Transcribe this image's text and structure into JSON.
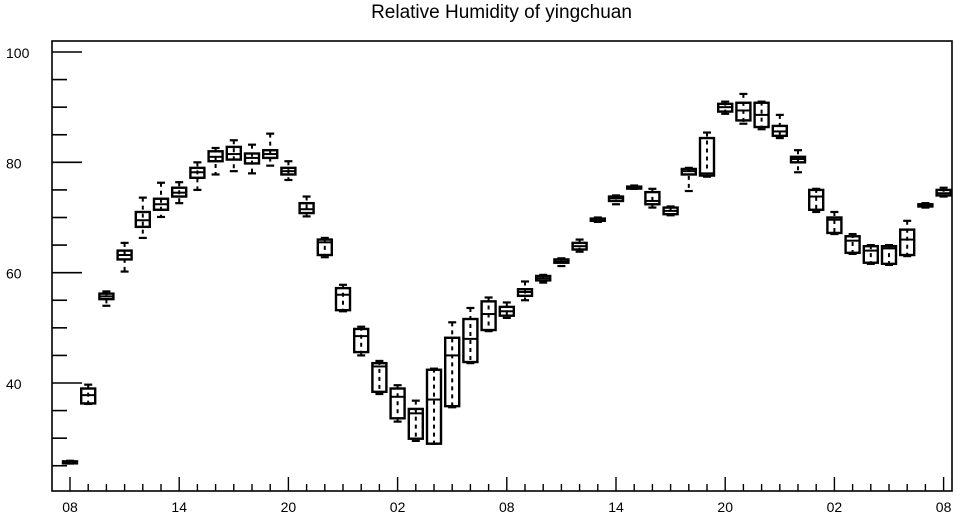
{
  "chart_data": {
    "type": "box",
    "title": "Relative Humidity of yingchuan",
    "xlabel": "",
    "ylabel": "",
    "ylim": [
      22,
      102
    ],
    "yticks": [
      40,
      60,
      80,
      100
    ],
    "x_tick_labels": [
      "08",
      "14",
      "20",
      "02",
      "08",
      "14",
      "20",
      "02",
      "08"
    ],
    "x_tick_hours": [
      0,
      6,
      12,
      18,
      24,
      30,
      36,
      42,
      48
    ],
    "grid": false,
    "boxes": [
      {
        "hour": 0,
        "min": 25.4,
        "q1": 25.5,
        "median": 25.6,
        "q3": 25.8,
        "max": 25.9
      },
      {
        "hour": 1,
        "min": 36.2,
        "q1": 36.3,
        "median": 37.8,
        "q3": 39.0,
        "max": 39.7
      },
      {
        "hour": 2,
        "min": 54.0,
        "q1": 55.2,
        "median": 55.7,
        "q3": 56.2,
        "max": 56.6
      },
      {
        "hour": 3,
        "min": 60.2,
        "q1": 62.4,
        "median": 63.2,
        "q3": 64.0,
        "max": 65.4
      },
      {
        "hour": 4,
        "min": 66.3,
        "q1": 68.3,
        "median": 69.5,
        "q3": 71.0,
        "max": 73.6
      },
      {
        "hour": 5,
        "min": 70.1,
        "q1": 71.4,
        "median": 72.4,
        "q3": 73.4,
        "max": 76.3
      },
      {
        "hour": 6,
        "min": 72.6,
        "q1": 73.8,
        "median": 74.5,
        "q3": 75.4,
        "max": 76.4
      },
      {
        "hour": 7,
        "min": 75.0,
        "q1": 77.2,
        "median": 78.2,
        "q3": 79.0,
        "max": 80.0
      },
      {
        "hour": 8,
        "min": 77.8,
        "q1": 80.2,
        "median": 81.0,
        "q3": 82.0,
        "max": 82.6
      },
      {
        "hour": 9,
        "min": 78.4,
        "q1": 80.5,
        "median": 81.5,
        "q3": 82.8,
        "max": 84.0
      },
      {
        "hour": 10,
        "min": 78.0,
        "q1": 79.8,
        "median": 80.8,
        "q3": 81.6,
        "max": 83.2
      },
      {
        "hour": 11,
        "min": 79.4,
        "q1": 80.8,
        "median": 81.5,
        "q3": 82.2,
        "max": 85.2
      },
      {
        "hour": 12,
        "min": 76.8,
        "q1": 77.8,
        "median": 78.4,
        "q3": 79.0,
        "max": 80.2
      },
      {
        "hour": 13,
        "min": 70.2,
        "q1": 70.8,
        "median": 71.5,
        "q3": 72.6,
        "max": 73.8
      },
      {
        "hour": 14,
        "min": 62.8,
        "q1": 63.2,
        "median": 65.5,
        "q3": 66.0,
        "max": 66.3
      },
      {
        "hour": 15,
        "min": 53.0,
        "q1": 53.2,
        "median": 56.0,
        "q3": 57.2,
        "max": 57.8
      },
      {
        "hour": 16,
        "min": 45.0,
        "q1": 45.6,
        "median": 48.5,
        "q3": 49.8,
        "max": 50.2
      },
      {
        "hour": 17,
        "min": 38.0,
        "q1": 38.4,
        "median": 43.0,
        "q3": 43.6,
        "max": 44.0
      },
      {
        "hour": 18,
        "min": 33.0,
        "q1": 33.6,
        "median": 37.5,
        "q3": 39.0,
        "max": 39.6
      },
      {
        "hour": 19,
        "min": 29.5,
        "q1": 29.9,
        "median": 34.5,
        "q3": 35.3,
        "max": 36.8
      },
      {
        "hour": 20,
        "min": 29.0,
        "q1": 29.0,
        "median": 37.0,
        "q3": 42.4,
        "max": 42.6
      },
      {
        "hour": 21,
        "min": 35.6,
        "q1": 35.8,
        "median": 45.0,
        "q3": 48.2,
        "max": 51.0
      },
      {
        "hour": 22,
        "min": 43.6,
        "q1": 43.8,
        "median": 48.0,
        "q3": 51.6,
        "max": 53.6
      },
      {
        "hour": 23,
        "min": 49.4,
        "q1": 49.6,
        "median": 52.5,
        "q3": 54.8,
        "max": 55.5
      },
      {
        "hour": 24,
        "min": 51.8,
        "q1": 52.2,
        "median": 53.0,
        "q3": 53.8,
        "max": 54.6
      },
      {
        "hour": 25,
        "min": 55.0,
        "q1": 55.8,
        "median": 56.5,
        "q3": 57.0,
        "max": 58.4
      },
      {
        "hour": 26,
        "min": 58.2,
        "q1": 58.6,
        "median": 59.0,
        "q3": 59.4,
        "max": 59.6
      },
      {
        "hour": 27,
        "min": 61.2,
        "q1": 61.8,
        "median": 62.0,
        "q3": 62.4,
        "max": 62.6
      },
      {
        "hour": 28,
        "min": 63.8,
        "q1": 64.2,
        "median": 64.8,
        "q3": 65.4,
        "max": 66.0
      },
      {
        "hour": 29,
        "min": 69.2,
        "q1": 69.4,
        "median": 69.6,
        "q3": 69.8,
        "max": 70.0
      },
      {
        "hour": 30,
        "min": 72.4,
        "q1": 73.0,
        "median": 73.5,
        "q3": 73.8,
        "max": 74.0
      },
      {
        "hour": 31,
        "min": 75.2,
        "q1": 75.4,
        "median": 75.5,
        "q3": 75.6,
        "max": 75.8
      },
      {
        "hour": 32,
        "min": 71.8,
        "q1": 72.4,
        "median": 73.0,
        "q3": 74.6,
        "max": 75.2
      },
      {
        "hour": 33,
        "min": 70.4,
        "q1": 70.6,
        "median": 71.2,
        "q3": 71.8,
        "max": 72.0
      },
      {
        "hour": 34,
        "min": 74.8,
        "q1": 77.8,
        "median": 78.4,
        "q3": 78.8,
        "max": 79.0
      },
      {
        "hour": 35,
        "min": 77.4,
        "q1": 77.6,
        "median": 78.0,
        "q3": 84.4,
        "max": 85.4
      },
      {
        "hour": 36,
        "min": 88.8,
        "q1": 89.2,
        "median": 90.0,
        "q3": 90.6,
        "max": 91.0
      },
      {
        "hour": 37,
        "min": 87.0,
        "q1": 87.6,
        "median": 89.4,
        "q3": 90.8,
        "max": 92.4
      },
      {
        "hour": 38,
        "min": 86.0,
        "q1": 86.4,
        "median": 88.6,
        "q3": 90.8,
        "max": 91.0
      },
      {
        "hour": 39,
        "min": 84.4,
        "q1": 84.8,
        "median": 85.6,
        "q3": 86.6,
        "max": 88.6
      },
      {
        "hour": 40,
        "min": 78.2,
        "q1": 80.0,
        "median": 80.6,
        "q3": 81.0,
        "max": 82.2
      },
      {
        "hour": 41,
        "min": 71.0,
        "q1": 71.4,
        "median": 73.8,
        "q3": 75.0,
        "max": 75.2
      },
      {
        "hour": 42,
        "min": 67.0,
        "q1": 67.2,
        "median": 69.6,
        "q3": 70.0,
        "max": 71.0
      },
      {
        "hour": 43,
        "min": 63.4,
        "q1": 63.6,
        "median": 65.8,
        "q3": 66.6,
        "max": 67.0
      },
      {
        "hour": 44,
        "min": 61.6,
        "q1": 61.8,
        "median": 64.0,
        "q3": 64.8,
        "max": 65.0
      },
      {
        "hour": 45,
        "min": 61.4,
        "q1": 61.6,
        "median": 64.4,
        "q3": 64.8,
        "max": 65.0
      },
      {
        "hour": 46,
        "min": 63.0,
        "q1": 63.2,
        "median": 66.0,
        "q3": 67.8,
        "max": 69.4
      },
      {
        "hour": 47,
        "min": 71.8,
        "q1": 72.0,
        "median": 72.2,
        "q3": 72.4,
        "max": 72.6
      },
      {
        "hour": 48,
        "min": 73.8,
        "q1": 74.0,
        "median": 74.4,
        "q3": 75.0,
        "max": 75.4
      }
    ]
  }
}
